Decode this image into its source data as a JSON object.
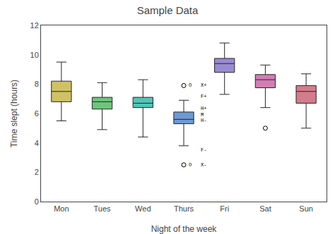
{
  "chart_data": {
    "type": "box",
    "title": "Sample Data",
    "xlabel": "Night of the week",
    "ylabel": "Time slept (hours)",
    "categories": [
      "Mon",
      "Tues",
      "Wed",
      "Thurs",
      "Fri",
      "Sat",
      "Sun"
    ],
    "boxes": [
      {
        "q1": 6.8,
        "median": 7.5,
        "q3": 8.2,
        "whislo": 5.5,
        "whishi": 9.5,
        "fliers": []
      },
      {
        "q1": 6.3,
        "median": 6.8,
        "q3": 7.1,
        "whislo": 4.9,
        "whishi": 8.1,
        "fliers": []
      },
      {
        "q1": 6.4,
        "median": 6.7,
        "q3": 7.1,
        "whislo": 4.4,
        "whishi": 8.3,
        "fliers": []
      },
      {
        "q1": 5.3,
        "median": 5.6,
        "q3": 6.1,
        "whislo": 3.8,
        "whishi": 6.9,
        "fliers": [
          7.9,
          2.5
        ]
      },
      {
        "q1": 8.8,
        "median": 9.4,
        "q3": 9.75,
        "whislo": 7.3,
        "whishi": 10.8,
        "fliers": []
      },
      {
        "q1": 7.75,
        "median": 8.3,
        "q3": 8.65,
        "whislo": 6.4,
        "whishi": 9.3,
        "fliers": [
          5.0
        ]
      },
      {
        "q1": 6.7,
        "median": 7.5,
        "q3": 7.9,
        "whislo": 5.0,
        "whishi": 8.7,
        "fliers": []
      }
    ],
    "colors": [
      "#c8b84a",
      "#55bb66",
      "#33bbaa",
      "#5588cc",
      "#8877cc",
      "#cc66aa",
      "#cc6677"
    ],
    "ylim": [
      0,
      12
    ],
    "yticks": [
      0,
      2,
      4,
      6,
      8,
      10,
      12
    ],
    "grid": false,
    "annotations": [
      {
        "text": "O",
        "x": "Thurs",
        "y": 7.9
      },
      {
        "text": "X+",
        "x": "Thurs",
        "y": 7.9
      },
      {
        "text": "F+",
        "x": "Thurs",
        "y": 7.15
      },
      {
        "text": "H+",
        "x": "Thurs",
        "y": 6.35
      },
      {
        "text": "M",
        "x": "Thurs",
        "y": 5.9
      },
      {
        "text": "H-",
        "x": "Thurs",
        "y": 5.5
      },
      {
        "text": "F-",
        "x": "Thurs",
        "y": 3.5
      },
      {
        "text": "O",
        "x": "Thurs",
        "y": 2.5
      },
      {
        "text": "X-",
        "x": "Thurs",
        "y": 2.5
      }
    ]
  }
}
